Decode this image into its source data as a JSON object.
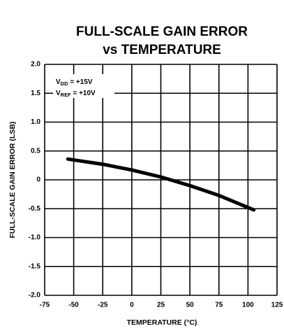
{
  "chart_data": {
    "type": "line",
    "title_lines": [
      "FULL-SCALE GAIN ERROR",
      "vs TEMPERATURE"
    ],
    "xlabel": "TEMPERATURE (°C)",
    "ylabel": "FULL-SCALE GAIN ERROR (LSB)",
    "annotations": [
      {
        "main": "V",
        "sub": "DD",
        "rest": " = +15V"
      },
      {
        "main": "V",
        "sub": "REF",
        "rest": " = +10V"
      }
    ],
    "x": [
      -55,
      -25,
      0,
      25,
      50,
      75,
      105
    ],
    "series": [
      {
        "color": "#000000",
        "values": [
          0.36,
          0.27,
          0.17,
          0.05,
          -0.1,
          -0.27,
          -0.52
        ]
      }
    ],
    "xlim": [
      -75,
      125
    ],
    "xticks": [
      -75,
      -50,
      -25,
      0,
      25,
      50,
      75,
      100,
      125
    ],
    "ylim": [
      -2,
      2
    ],
    "yticks": [
      {
        "value": -2,
        "label": "-2.0"
      },
      {
        "value": -1.5,
        "label": "-1.5"
      },
      {
        "value": -1,
        "label": "-1.0"
      },
      -0.5,
      0,
      0.5,
      {
        "value": 1,
        "label": "1.0"
      },
      1.5,
      {
        "value": 2,
        "label": "2.0"
      }
    ],
    "grid": true
  }
}
